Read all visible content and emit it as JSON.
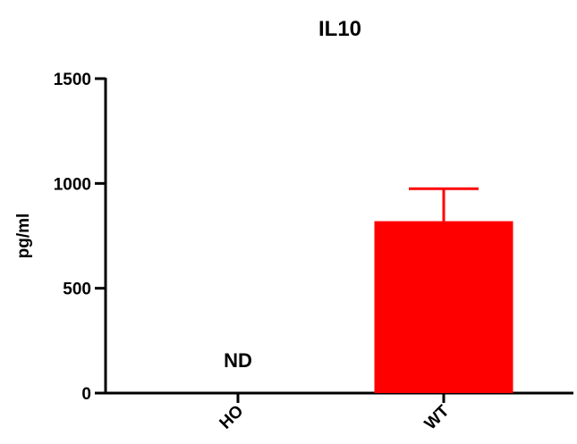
{
  "chart_data": {
    "type": "bar",
    "title": "IL10",
    "ylabel": "pg/ml",
    "xlabel": "",
    "categories": [
      "HO",
      "WT"
    ],
    "values": [
      0,
      820
    ],
    "error": [
      0,
      155
    ],
    "annotations": [
      {
        "category": "HO",
        "text": "ND"
      }
    ],
    "ylim": [
      0,
      1500
    ],
    "yticks": [
      0,
      500,
      1000,
      1500
    ],
    "ytick_labels": [
      "0",
      "500",
      "1000",
      "1500"
    ],
    "grid": false,
    "legend": "none",
    "bar_color": "#ff0000"
  }
}
